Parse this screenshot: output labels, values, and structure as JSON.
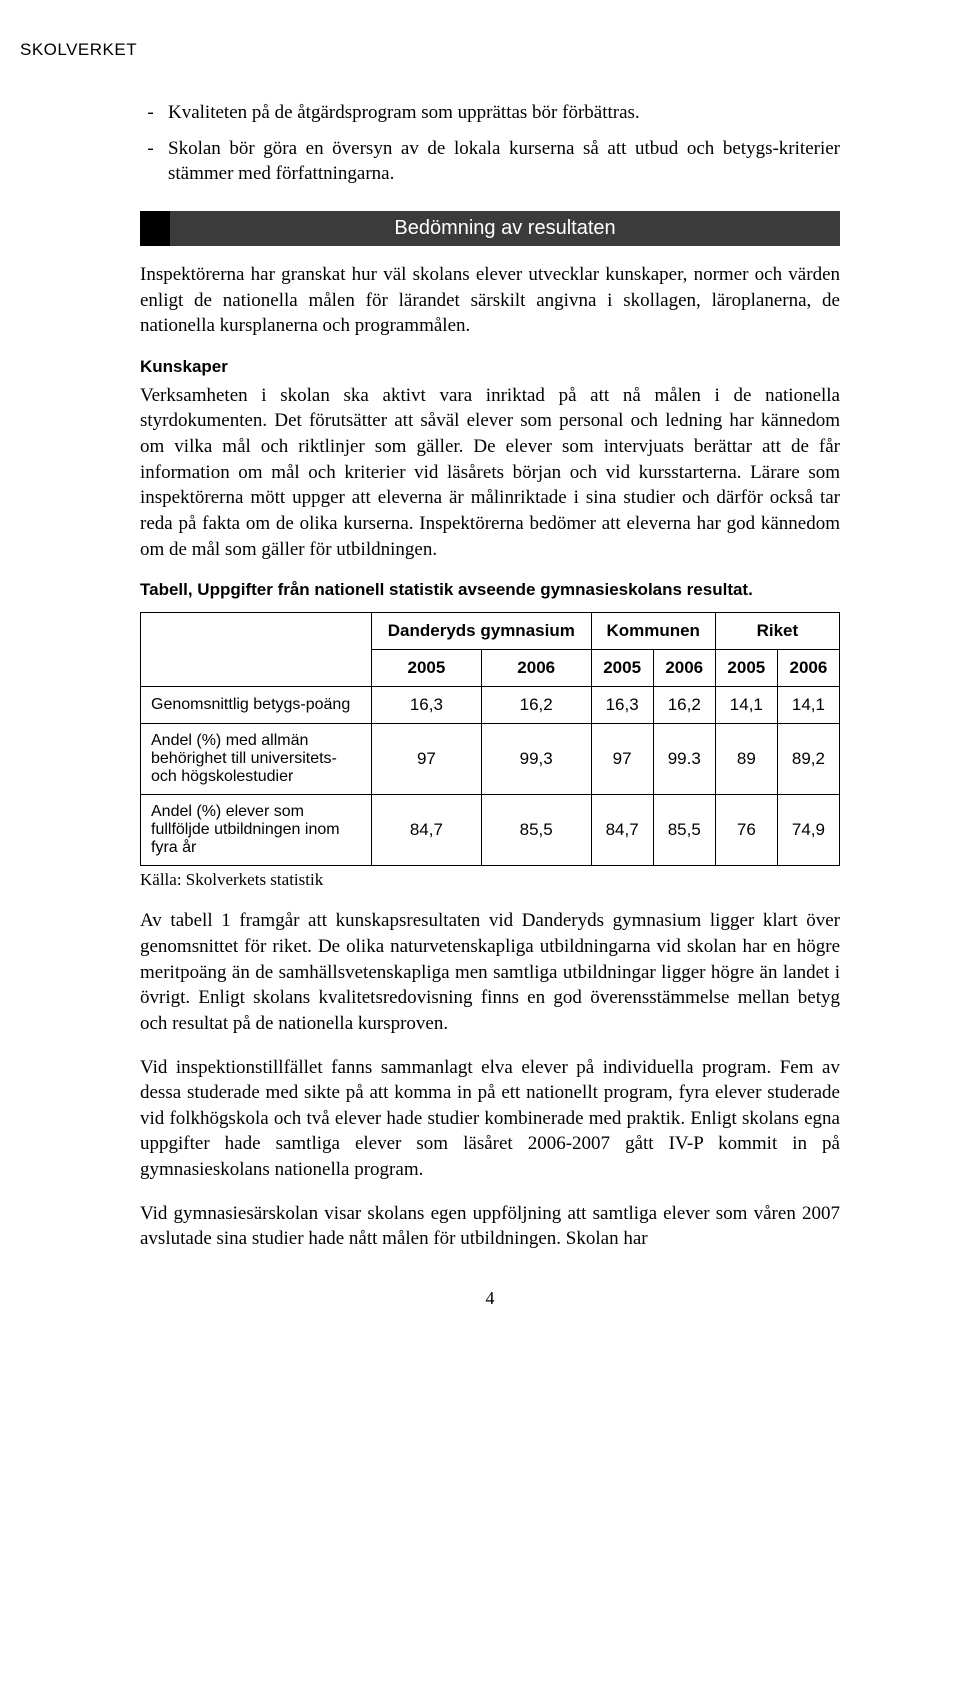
{
  "org": "SKOLVERKET",
  "bullets": [
    "Kvaliteten på de åtgärdsprogram som upprättas bör förbättras.",
    "Skolan bör göra en översyn av de lokala kurserna så att utbud och betygs-kriterier stämmer med författningarna."
  ],
  "section_banner": "Bedömning av resultaten",
  "para1": "Inspektörerna har granskat hur väl skolans elever utvecklar kunskaper, normer och värden enligt de nationella målen för lärandet särskilt angivna i skollagen, läroplanerna, de nationella kursplanerna och programmålen.",
  "subhead_kunskaper": "Kunskaper",
  "para2": "Verksamheten i skolan ska aktivt vara inriktad på att nå målen i de nationella styrdokumenten. Det förutsätter att såväl elever som personal och ledning har kännedom om vilka mål och riktlinjer som gäller. De elever som intervjuats berättar att de får information om mål och kriterier vid läsårets början och vid kursstarterna. Lärare som inspektörerna mött uppger att eleverna är målinriktade i sina studier och därför också tar reda på fakta om de olika kurserna. Inspektörerna bedömer att eleverna har god kännedom om de mål som gäller för utbildningen.",
  "table_caption": "Tabell, Uppgifter från nationell statistik avseende gymnasieskolans resultat.",
  "table": {
    "groups": [
      "Danderyds gymnasium",
      "Kommunen",
      "Riket"
    ],
    "years": [
      "2005",
      "2006",
      "2005",
      "2006",
      "2005",
      "2006"
    ],
    "rows": [
      {
        "label": "Genomsnittlig betygs-poäng",
        "cells": [
          "16,3",
          "16,2",
          "16,3",
          "16,2",
          "14,1",
          "14,1"
        ]
      },
      {
        "label": "Andel (%) med allmän behörighet till universitets- och högskolestudier",
        "cells": [
          "97",
          "99,3",
          "97",
          "99.3",
          "89",
          "89,2"
        ]
      },
      {
        "label": "Andel (%) elever som fullföljde utbildningen inom fyra år",
        "cells": [
          "84,7",
          "85,5",
          "84,7",
          "85,5",
          "76",
          "74,9"
        ]
      }
    ]
  },
  "source_note": "Källa: Skolverkets statistik",
  "para3": "Av tabell 1 framgår att kunskapsresultaten vid Danderyds gymnasium ligger klart över genomsnittet för riket. De olika naturvetenskapliga utbildningarna vid skolan har en högre meritpoäng än de samhällsvetenskapliga men samtliga utbildningar ligger högre än landet i övrigt. Enligt skolans kvalitetsredovisning finns en god överensstämmelse mellan betyg och resultat på de nationella kursproven.",
  "para4": "Vid inspektionstillfället fanns sammanlagt elva elever på individuella program. Fem av dessa studerade med sikte på att komma in på ett nationellt program, fyra elever studerade vid folkhögskola och två elever hade studier kombinerade med praktik. Enligt skolans egna uppgifter hade samtliga elever som läsåret 2006-2007 gått IV-P kommit in på gymnasieskolans nationella program.",
  "para5": "Vid gymnasiesärskolan visar skolans egen uppföljning att samtliga elever som våren 2007 avslutade sina studier hade nått målen för utbildningen. Skolan har",
  "page_number": "4"
}
